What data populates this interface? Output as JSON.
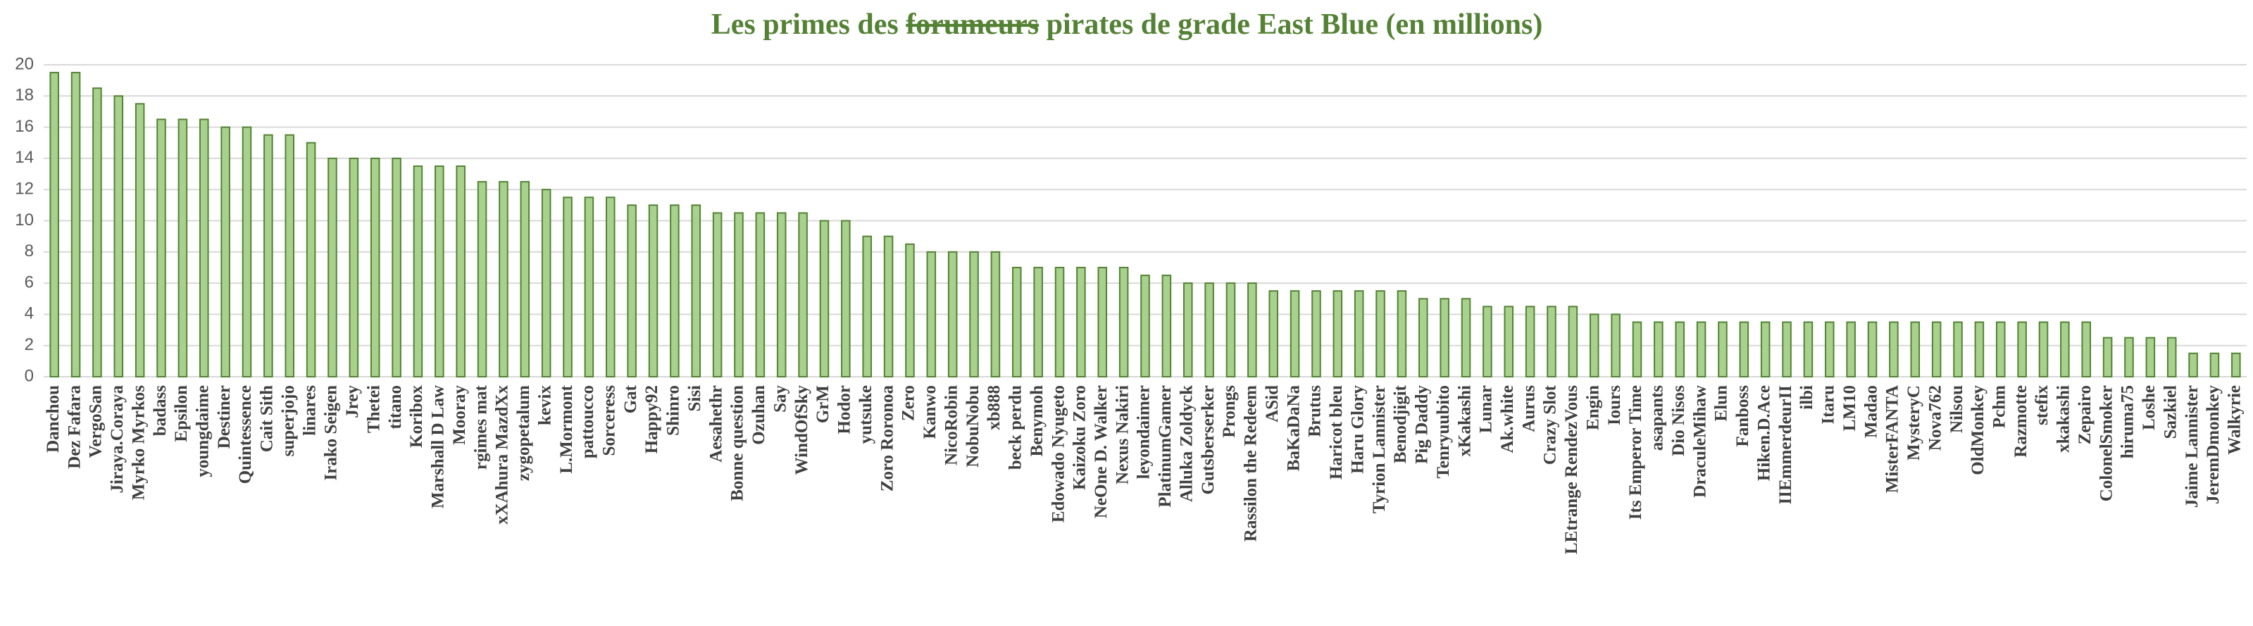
{
  "chart_data": {
    "type": "bar",
    "title_before": "Les primes des ",
    "title_struck": "forumeurs",
    "title_after": " pirates de grade East Blue (en millions)",
    "categories": [
      "Danchou",
      "Dez Fafara",
      "VergoSan",
      "Jiraya.Coraya",
      "Myrko Myrkos",
      "badass",
      "Epsilon",
      "youngdaime",
      "Destiner",
      "Quintessence",
      "Cait Sith",
      "superjojo",
      "linares",
      "Irako Seigen",
      "Jrey",
      "Thetei",
      "titano",
      "Koribox",
      "Marshall D Law",
      "Mooray",
      "rgimes mat",
      "xXAhura MazdXx",
      "zygopetalum",
      "kevix",
      "L.Mormont",
      "pattoucco",
      "Sorceress",
      "Gat",
      "Happy92",
      "Shinro",
      "Sisi",
      "Aesahethr",
      "Bonne question",
      "Ozuhan",
      "Say",
      "WindOfSky",
      "GrM",
      "Hodor",
      "yutsuke",
      "Zoro Roronoa",
      "Zero",
      "Kanwo",
      "NicoRobin",
      "NobuNobu",
      "xb888",
      "beck perdu",
      "Benymoh",
      "Edowado Nyugeto",
      "Kaizoku Zoro",
      "NeOne D. Walker",
      "Nexus Nakiri",
      "leyondaimer",
      "PlatinumGamer",
      "Alluka Zoldyck",
      "Gutsberserker",
      "Prongs",
      "Rassilon the Redeem",
      "ASid",
      "BaKaDaNa",
      "Brutus",
      "Haricot bleu",
      "Haru Glory",
      "Tyrion Lannister",
      "Benodjigit",
      "Pig Daddy",
      "Tenryuubito",
      "xKakashi",
      "Lunar",
      "Ak.white",
      "Aurus",
      "Crazy Slot",
      "LEtrange RendezVous",
      "Engin",
      "Iours",
      "Its Emperor Time",
      "asapants",
      "Dio Nisos",
      "DraculeMihaw",
      "Elun",
      "Fanboss",
      "Hiken.D.Ace",
      "IIEmmerdeurII",
      "ilbi",
      "Itaru",
      "LM10",
      "Madao",
      "MisterFANTA",
      "MysteryC",
      "Nova762",
      "Nilsou",
      "OldMonkey",
      "Pchm",
      "Razmotte",
      "stefix",
      "xkakashi",
      "Zepairo",
      "ColonelSmoker",
      "hiruma75",
      "Loshe",
      "Sazkiel",
      "Jaime Lannister",
      "JeremDmonkey",
      "Walkyrie"
    ],
    "values": [
      19.5,
      19.5,
      18.5,
      18,
      17.5,
      16.5,
      16.5,
      16.5,
      16,
      16,
      15.5,
      15.5,
      15,
      14,
      14,
      14,
      14,
      13.5,
      13.5,
      13.5,
      12.5,
      12.5,
      12.5,
      12,
      11.5,
      11.5,
      11.5,
      11,
      11,
      11,
      11,
      10.5,
      10.5,
      10.5,
      10.5,
      10.5,
      10,
      10,
      9,
      9,
      8.5,
      8,
      8,
      8,
      8,
      7,
      7,
      7,
      7,
      7,
      7,
      6.5,
      6.5,
      6,
      6,
      6,
      6,
      5.5,
      5.5,
      5.5,
      5.5,
      5.5,
      5.5,
      5.5,
      5,
      5,
      5,
      4.5,
      4.5,
      4.5,
      4.5,
      4.5,
      4,
      4,
      3.5,
      3.5,
      3.5,
      3.5,
      3.5,
      3.5,
      3.5,
      3.5,
      3.5,
      3.5,
      3.5,
      3.5,
      3.5,
      3.5,
      3.5,
      3.5,
      3.5,
      3.5,
      3.5,
      3.5,
      3.5,
      3.5,
      2.5,
      2.5,
      2.5,
      2.5,
      1.5,
      1.5,
      1.5
    ],
    "color": "#a9d18e",
    "edge_color": "#548235",
    "ylim": [
      0,
      20
    ],
    "yticks": [
      0,
      2,
      4,
      6,
      8,
      10,
      12,
      14,
      16,
      18,
      20
    ],
    "grid": true
  }
}
